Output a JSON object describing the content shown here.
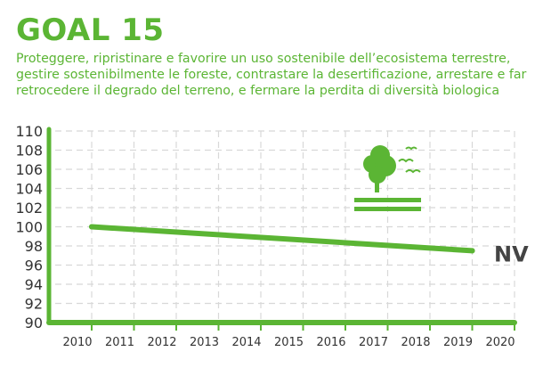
{
  "header": {
    "title": "GOAL 15",
    "subtitle": "Proteggere, ripristinare e favorire un uso sostenibile dell’ecosistema terrestre, gestire sostenibilmente le foreste, contrastare la desertificazione, arrestare e far retrocedere il degrado del terreno, e fermare la perdita di diversità biologica"
  },
  "colors": {
    "accent": "#5bb534",
    "label": "#444444",
    "grid": "#d8d8d8"
  },
  "icon": "tree-birds-icon",
  "chart_data": {
    "type": "line",
    "x": [
      2010,
      2019
    ],
    "series": [
      {
        "name": "Goal 15",
        "values": [
          100,
          97.5
        ]
      }
    ],
    "xticks": [
      "2010",
      "2011",
      "2012",
      "2013",
      "2014",
      "2015",
      "2016",
      "2017",
      "2018",
      "2019",
      "2020"
    ],
    "yticks": [
      "90",
      "92",
      "94",
      "96",
      "98",
      "100",
      "102",
      "104",
      "106",
      "108",
      "110"
    ],
    "xlim": [
      2010,
      2020
    ],
    "ylim": [
      90,
      110
    ],
    "grid": true,
    "annotation": "NV"
  }
}
